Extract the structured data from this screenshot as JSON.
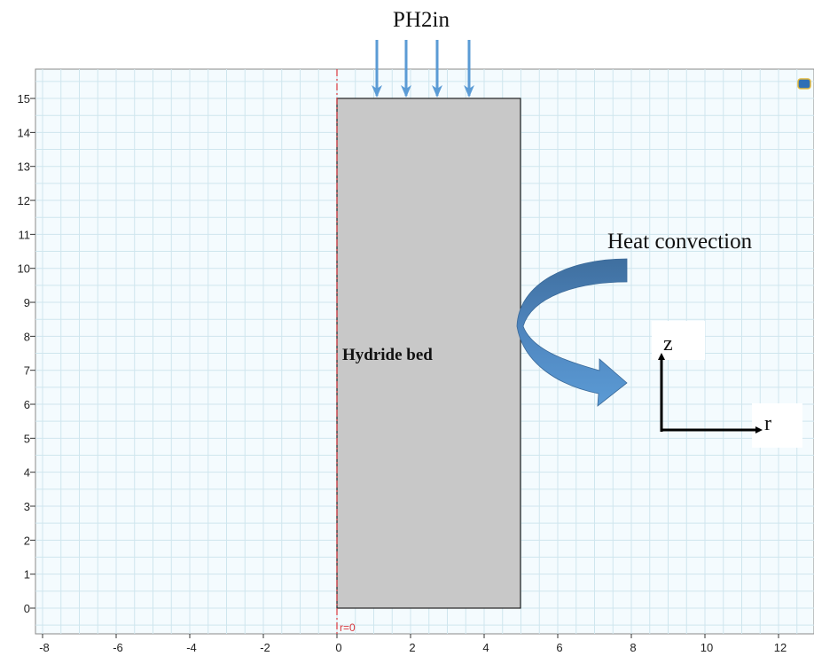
{
  "top_label": "PH2in",
  "convection_label": "Heat convection",
  "domain_label": "Hydride bed",
  "axis_glyph": {
    "z": "z",
    "r": "r"
  },
  "symmetry_label": "r=0",
  "x_ticks": [
    -8,
    -6,
    -4,
    -2,
    0,
    2,
    4,
    6,
    8,
    10,
    12
  ],
  "y_ticks": [
    0,
    1,
    2,
    3,
    4,
    5,
    6,
    7,
    8,
    9,
    10,
    11,
    12,
    13,
    14,
    15
  ]
}
